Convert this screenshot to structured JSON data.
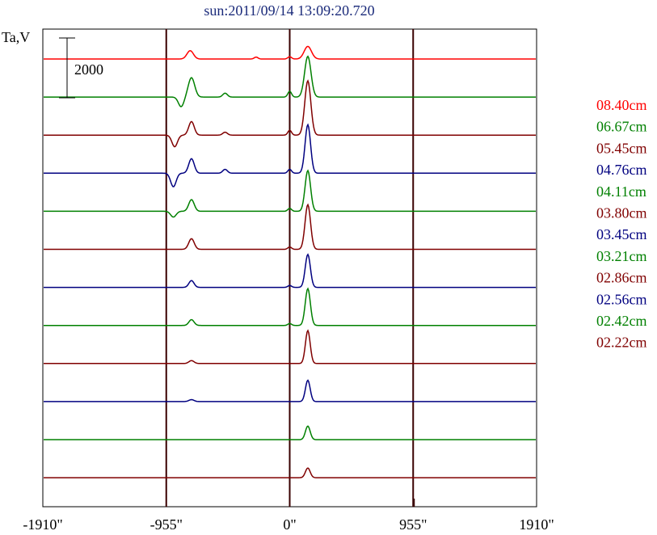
{
  "chart_data": {
    "type": "line",
    "title": "sun:2011/09/14 13:09:20.720",
    "title_color": "#1a2a7a",
    "ylabel": "Ta,V",
    "scale_bar": {
      "label": "2000",
      "value": 2000
    },
    "x_ticks": [
      {
        "value": -1910,
        "label": "-1910\""
      },
      {
        "value": -955,
        "label": "-955\""
      },
      {
        "value": 0,
        "label": "0\""
      },
      {
        "value": 955,
        "label": "955\""
      },
      {
        "value": 1910,
        "label": "1910\""
      }
    ],
    "xlim": [
      -1910,
      1910
    ],
    "vertical_lines": [
      -955,
      0,
      955
    ],
    "series": [
      {
        "name": "08.40cm",
        "color": "#ff0000",
        "baseline_offset": 0,
        "peaks": [
          {
            "x": -770,
            "amp": 430,
            "w": 35
          },
          {
            "x": 140,
            "amp": 650,
            "w": 40
          },
          {
            "x": 0,
            "amp": 120,
            "w": 20
          },
          {
            "x": -260,
            "amp": 100,
            "w": 20
          }
        ]
      },
      {
        "name": "06.67cm",
        "color": "#008000",
        "baseline_offset": -1,
        "peaks": [
          {
            "x": -840,
            "amp": -500,
            "w": 30
          },
          {
            "x": -760,
            "amp": 1000,
            "w": 35
          },
          {
            "x": -500,
            "amp": 200,
            "w": 25
          },
          {
            "x": 0,
            "amp": 300,
            "w": 20
          },
          {
            "x": 140,
            "amp": 2100,
            "w": 35
          }
        ]
      },
      {
        "name": "05.45cm",
        "color": "#800000",
        "baseline_offset": -2,
        "peaks": [
          {
            "x": -890,
            "amp": -600,
            "w": 30
          },
          {
            "x": -760,
            "amp": 700,
            "w": 30
          },
          {
            "x": -500,
            "amp": 150,
            "w": 25
          },
          {
            "x": 0,
            "amp": 250,
            "w": 20
          },
          {
            "x": 140,
            "amp": 2800,
            "w": 33
          }
        ]
      },
      {
        "name": "04.76cm",
        "color": "#000080",
        "baseline_offset": -3,
        "peaks": [
          {
            "x": -900,
            "amp": -700,
            "w": 30
          },
          {
            "x": -760,
            "amp": 750,
            "w": 30
          },
          {
            "x": -500,
            "amp": 200,
            "w": 25
          },
          {
            "x": 0,
            "amp": 200,
            "w": 20
          },
          {
            "x": 140,
            "amp": 2500,
            "w": 30
          }
        ]
      },
      {
        "name": "04.11cm",
        "color": "#008000",
        "baseline_offset": -4,
        "peaks": [
          {
            "x": -900,
            "amp": -300,
            "w": 30
          },
          {
            "x": -760,
            "amp": 600,
            "w": 30
          },
          {
            "x": 0,
            "amp": 150,
            "w": 20
          },
          {
            "x": 140,
            "amp": 2100,
            "w": 30
          }
        ]
      },
      {
        "name": "03.80cm",
        "color": "#800000",
        "baseline_offset": -5,
        "peaks": [
          {
            "x": -760,
            "amp": 550,
            "w": 30
          },
          {
            "x": 0,
            "amp": 120,
            "w": 20
          },
          {
            "x": 140,
            "amp": 2300,
            "w": 30
          }
        ]
      },
      {
        "name": "03.45cm",
        "color": "#000080",
        "baseline_offset": -6,
        "peaks": [
          {
            "x": -760,
            "amp": 350,
            "w": 28
          },
          {
            "x": 0,
            "amp": 100,
            "w": 20
          },
          {
            "x": 140,
            "amp": 1700,
            "w": 28
          }
        ]
      },
      {
        "name": "03.21cm",
        "color": "#008000",
        "baseline_offset": -7,
        "peaks": [
          {
            "x": -760,
            "amp": 300,
            "w": 28
          },
          {
            "x": 0,
            "amp": 100,
            "w": 20
          },
          {
            "x": 140,
            "amp": 1900,
            "w": 28
          }
        ]
      },
      {
        "name": "02.86cm",
        "color": "#800000",
        "baseline_offset": -8,
        "peaks": [
          {
            "x": -760,
            "amp": 150,
            "w": 28
          },
          {
            "x": 140,
            "amp": 1700,
            "w": 26
          }
        ]
      },
      {
        "name": "02.56cm",
        "color": "#000080",
        "baseline_offset": -9,
        "peaks": [
          {
            "x": -760,
            "amp": 100,
            "w": 28
          },
          {
            "x": 140,
            "amp": 1100,
            "w": 26
          }
        ]
      },
      {
        "name": "02.42cm",
        "color": "#008000",
        "baseline_offset": -10,
        "peaks": [
          {
            "x": 140,
            "amp": 700,
            "w": 26
          }
        ]
      },
      {
        "name": "02.22cm",
        "color": "#800000",
        "baseline_offset": -11,
        "peaks": [
          {
            "x": 140,
            "amp": 500,
            "w": 26
          }
        ]
      }
    ],
    "grid": false,
    "legend_placement": "right"
  }
}
